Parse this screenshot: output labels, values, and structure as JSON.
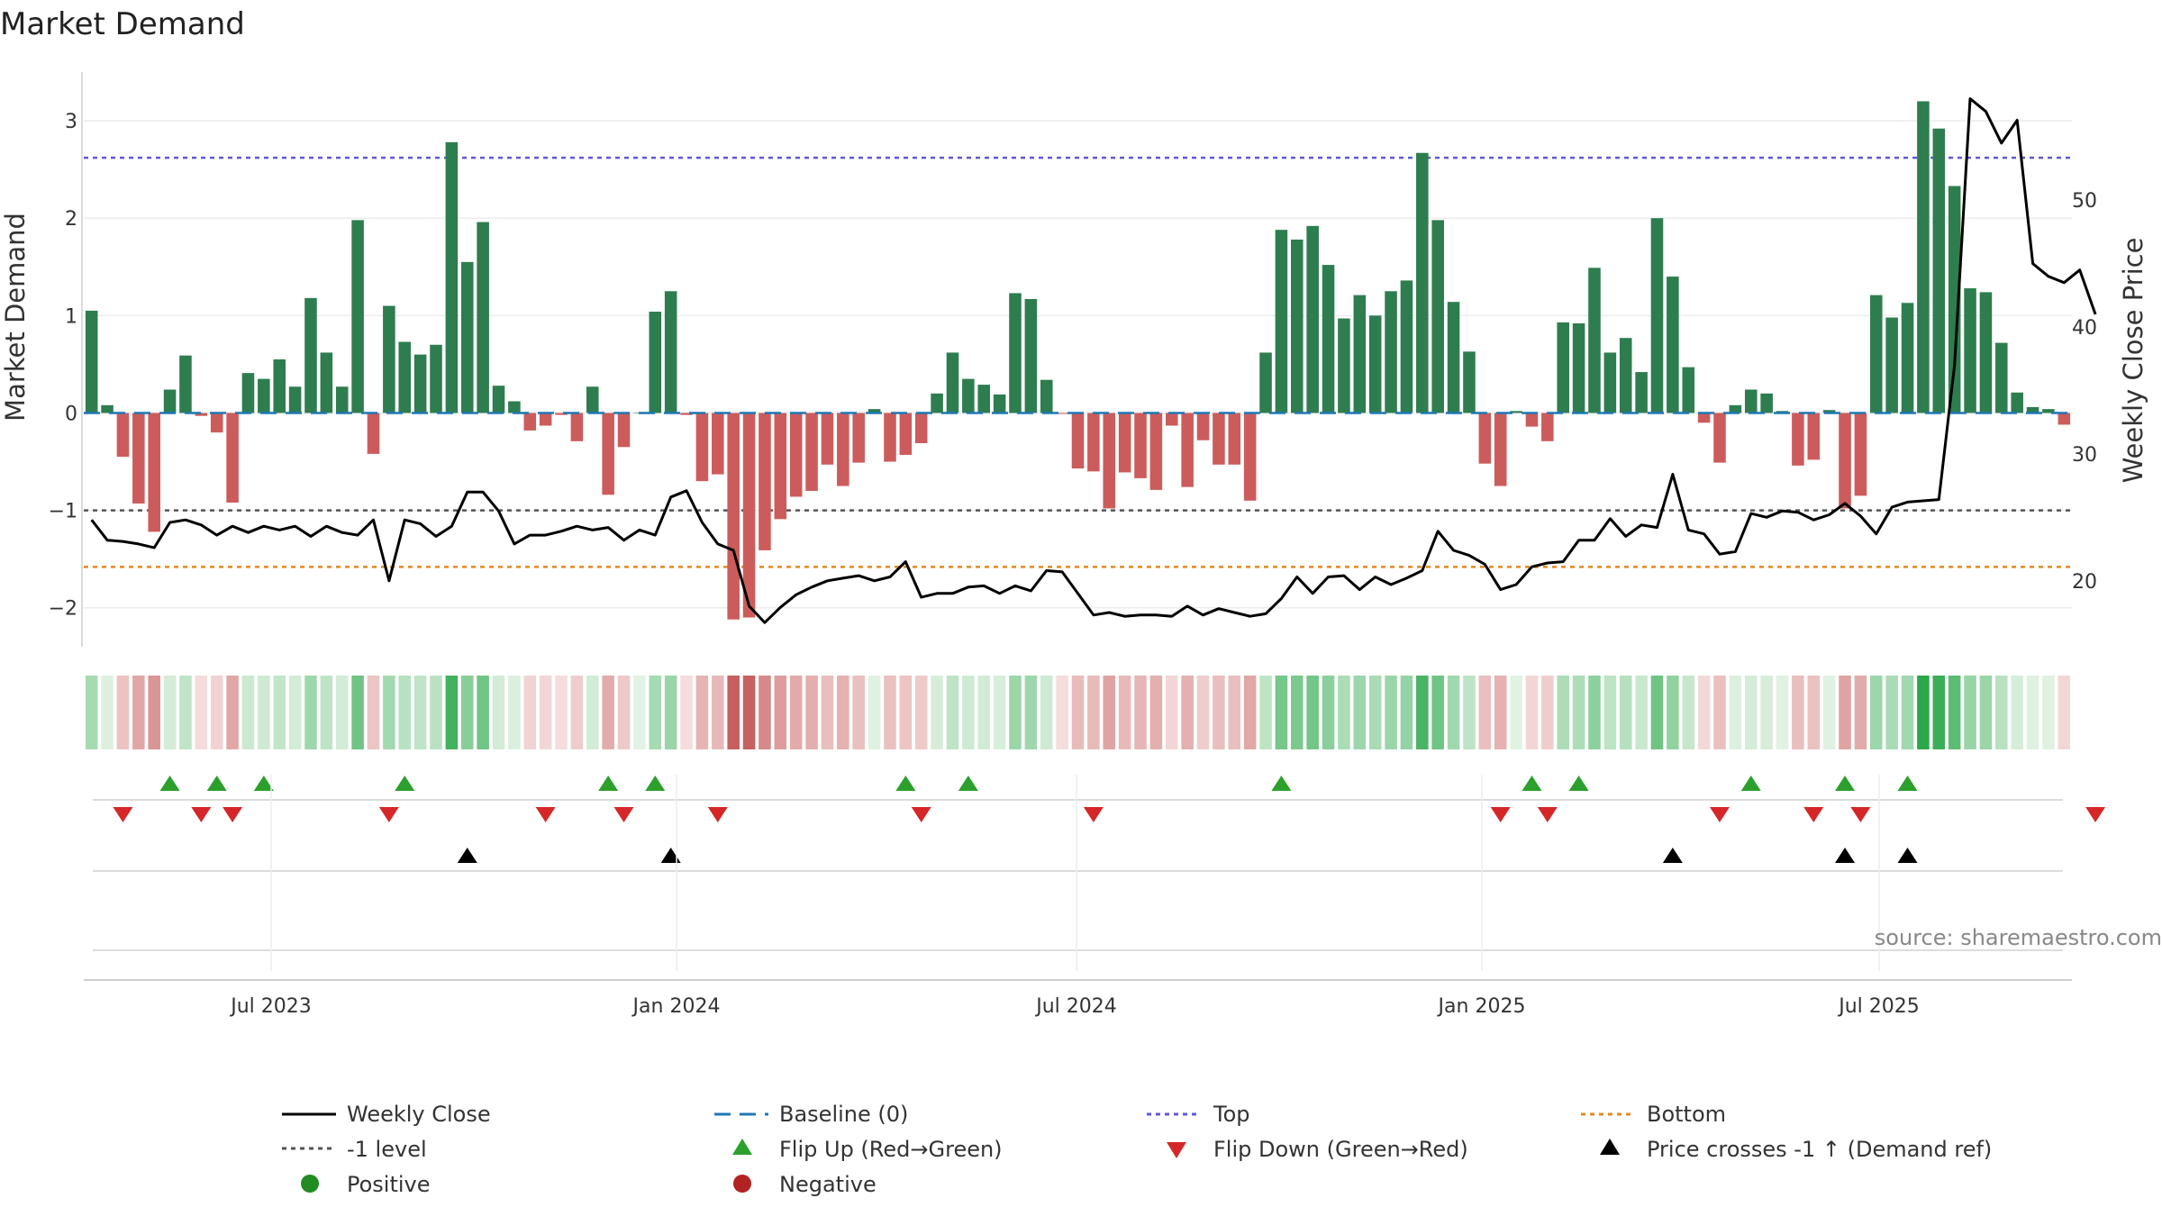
{
  "chart_data": {
    "type": "bar",
    "title": "Market Demand",
    "ylabel": "Market Demand",
    "y2label": "Weekly Close Price",
    "ylim": [
      -2.4,
      3.5
    ],
    "y2lim": [
      14.8,
      60.1
    ],
    "yticks": [
      "3",
      "2",
      "1",
      "0",
      "−1",
      "−2"
    ],
    "y2ticks": [
      "50",
      "40",
      "30",
      "20"
    ],
    "xticks": [
      "Jul 2023",
      "Jan 2024",
      "Jul 2024",
      "Jan 2025",
      "Jul 2025"
    ],
    "top_level": 2.62,
    "bottom_level": -1.58,
    "minus1_level": -1.0,
    "demand": [
      1.05,
      0.08,
      -0.45,
      -0.93,
      -1.22,
      0.24,
      0.59,
      -0.03,
      -0.2,
      -0.92,
      0.41,
      0.35,
      0.55,
      0.27,
      1.18,
      0.62,
      0.27,
      1.98,
      -0.42,
      1.1,
      0.73,
      0.6,
      0.7,
      2.78,
      1.55,
      1.96,
      0.28,
      0.12,
      -0.18,
      -0.13,
      -0.02,
      -0.29,
      0.27,
      -0.84,
      -0.35,
      0.0,
      1.04,
      1.25,
      -0.02,
      -0.7,
      -0.63,
      -2.12,
      -2.1,
      -1.41,
      -1.09,
      -0.86,
      -0.8,
      -0.53,
      -0.75,
      -0.51,
      0.04,
      -0.5,
      -0.43,
      -0.31,
      0.2,
      0.62,
      0.35,
      0.29,
      0.19,
      1.23,
      1.17,
      0.34,
      -0.01,
      -0.57,
      -0.6,
      -0.98,
      -0.61,
      -0.67,
      -0.79,
      -0.13,
      -0.76,
      -0.28,
      -0.53,
      -0.53,
      -0.9,
      0.62,
      1.88,
      1.78,
      1.92,
      1.52,
      0.97,
      1.21,
      1.0,
      1.25,
      1.36,
      2.67,
      1.98,
      1.14,
      0.63,
      -0.52,
      -0.75,
      0.02,
      -0.14,
      -0.29,
      0.93,
      0.92,
      1.49,
      0.62,
      0.77,
      0.42,
      2.0,
      1.4,
      0.47,
      -0.1,
      -0.51,
      0.08,
      0.24,
      0.2,
      0.02,
      -0.54,
      -0.48,
      0.03,
      -0.98,
      -0.85,
      1.21,
      0.98,
      1.13,
      3.2,
      2.92,
      2.33,
      1.28,
      1.24,
      0.72,
      0.21,
      0.06,
      0.04,
      -0.12
    ],
    "close": [
      24.8,
      23.2,
      23.1,
      22.9,
      22.6,
      24.6,
      24.8,
      24.4,
      23.6,
      24.3,
      23.8,
      24.3,
      24.0,
      24.3,
      23.5,
      24.3,
      23.8,
      23.6,
      24.8,
      20.0,
      24.8,
      24.5,
      23.5,
      24.3,
      27.0,
      27.0,
      25.5,
      22.9,
      23.6,
      23.6,
      23.9,
      24.3,
      24.0,
      24.2,
      23.2,
      24.0,
      23.6,
      26.6,
      27.1,
      24.6,
      22.9,
      22.4,
      18.0,
      16.7,
      17.9,
      18.9,
      19.5,
      20.0,
      20.2,
      20.4,
      20.0,
      20.3,
      21.5,
      18.7,
      19.0,
      19.0,
      19.5,
      19.6,
      19.0,
      19.6,
      19.2,
      20.8,
      20.7,
      19.0,
      17.3,
      17.5,
      17.2,
      17.3,
      17.3,
      17.2,
      18.0,
      17.3,
      17.8,
      17.5,
      17.2,
      17.4,
      18.6,
      20.3,
      19.0,
      20.3,
      20.4,
      19.3,
      20.3,
      19.7,
      20.2,
      20.8,
      23.9,
      22.4,
      22.0,
      21.3,
      19.3,
      19.7,
      21.1,
      21.4,
      21.5,
      23.2,
      23.2,
      24.9,
      23.5,
      24.4,
      24.2,
      28.4,
      24.0,
      23.7,
      22.1,
      22.3,
      25.3,
      25.0,
      25.5,
      25.4,
      24.8,
      25.2,
      26.1,
      25.1,
      23.7,
      25.8,
      26.2,
      26.3,
      26.4,
      37.0,
      58.0,
      57.0,
      54.5,
      56.3,
      45.0,
      44.0,
      43.5,
      44.5,
      41.0
    ],
    "flip_up": [
      5,
      8,
      11,
      20,
      33,
      36,
      52,
      56,
      76,
      92,
      95,
      106,
      112,
      116
    ],
    "flip_down": [
      2,
      7,
      9,
      19,
      29,
      34,
      40,
      53,
      64,
      90,
      93,
      104,
      110,
      113,
      128
    ],
    "price_cross_up": [
      24,
      37,
      101,
      112,
      116
    ],
    "source": "source: sharemaestro.com",
    "legend": {
      "weekly_close": "Weekly Close",
      "baseline": "Baseline (0)",
      "top": "Top",
      "bottom": "Bottom",
      "minus1": "-1 level",
      "flip_up": "Flip Up (Red→Green)",
      "flip_down": "Flip Down (Green→Red)",
      "price_cross": "Price crosses -1 ↑ (Demand ref)",
      "positive": "Positive",
      "negative": "Negative"
    },
    "colors": {
      "positive_bar": "#2e7d4f",
      "negative_bar": "#cc5c5c",
      "close_line": "#000000",
      "baseline": "#1f77b4",
      "top": "#5a5adc",
      "bottom": "#e08a1e",
      "minus1": "#555555",
      "flip_up": "#2ca02c",
      "flip_down": "#d62728",
      "price_cross": "#000000",
      "positive_dot": "#228b22",
      "negative_dot": "#b22222"
    }
  }
}
